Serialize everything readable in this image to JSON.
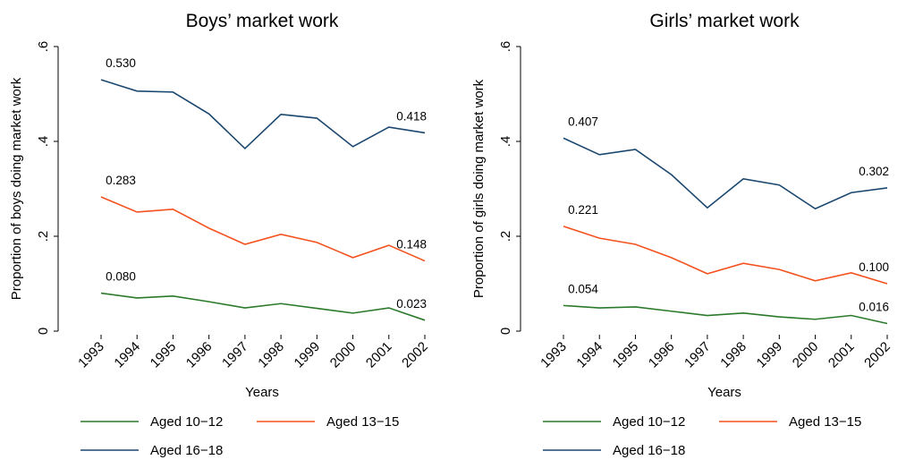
{
  "chart_data": [
    {
      "type": "line",
      "title": "Boys’ market work",
      "ylabel": "Proportion of boys doing market work",
      "xlabel": "Years",
      "categories": [
        "1993",
        "1994",
        "1995",
        "1996",
        "1997",
        "1998",
        "1999",
        "2000",
        "2001",
        "2002"
      ],
      "ylim": [
        0,
        0.6
      ],
      "yticks": [
        0,
        {
          "value": 0.2,
          "label": ".2"
        },
        {
          "value": 0.4,
          "label": ".4"
        },
        {
          "value": 0.6,
          "label": ".6"
        }
      ],
      "series": [
        {
          "name": "Aged 10−12",
          "color": "#2a7a2a",
          "values": [
            0.08,
            0.07,
            0.074,
            0.062,
            0.049,
            0.058,
            0.048,
            0.038,
            0.049,
            0.023
          ],
          "value_labels": [
            "0.080",
            null,
            null,
            null,
            null,
            null,
            null,
            null,
            null,
            "0.023"
          ]
        },
        {
          "name": "Aged 13−15",
          "color": "#f4511e",
          "values": [
            0.283,
            0.251,
            0.257,
            0.217,
            0.183,
            0.204,
            0.187,
            0.155,
            0.181,
            0.148
          ],
          "value_labels": [
            "0.283",
            null,
            null,
            null,
            null,
            null,
            null,
            null,
            null,
            "0.148"
          ]
        },
        {
          "name": "Aged 16−18",
          "color": "#1a476f",
          "values": [
            0.53,
            0.506,
            0.504,
            0.458,
            0.385,
            0.457,
            0.449,
            0.389,
            0.43,
            0.418
          ],
          "value_labels": [
            "0.530",
            null,
            null,
            null,
            null,
            null,
            null,
            null,
            null,
            "0.418"
          ]
        }
      ]
    },
    {
      "type": "line",
      "title": "Girls’ market work",
      "ylabel": "Proportion of girls doing market work",
      "xlabel": "Years",
      "categories": [
        "1993",
        "1994",
        "1995",
        "1996",
        "1997",
        "1998",
        "1999",
        "2000",
        "2001",
        "2002"
      ],
      "ylim": [
        0,
        0.6
      ],
      "yticks": [
        0,
        {
          "value": 0.2,
          "label": ".2"
        },
        {
          "value": 0.4,
          "label": ".4"
        },
        {
          "value": 0.6,
          "label": ".6"
        }
      ],
      "series": [
        {
          "name": "Aged 10−12",
          "color": "#2a7a2a",
          "values": [
            0.054,
            0.049,
            0.051,
            0.042,
            0.033,
            0.038,
            0.03,
            0.025,
            0.033,
            0.016
          ],
          "value_labels": [
            "0.054",
            null,
            null,
            null,
            null,
            null,
            null,
            null,
            null,
            "0.016"
          ]
        },
        {
          "name": "Aged 13−15",
          "color": "#f4511e",
          "values": [
            0.221,
            0.196,
            0.183,
            0.155,
            0.121,
            0.143,
            0.13,
            0.106,
            0.123,
            0.1
          ],
          "value_labels": [
            "0.221",
            null,
            null,
            null,
            null,
            null,
            null,
            null,
            null,
            "0.100"
          ]
        },
        {
          "name": "Aged 16−18",
          "color": "#1a476f",
          "values": [
            0.407,
            0.372,
            0.383,
            0.33,
            0.26,
            0.321,
            0.308,
            0.258,
            0.292,
            0.302
          ],
          "value_labels": [
            "0.407",
            null,
            null,
            null,
            null,
            null,
            null,
            null,
            null,
            "0.302"
          ]
        }
      ]
    }
  ]
}
